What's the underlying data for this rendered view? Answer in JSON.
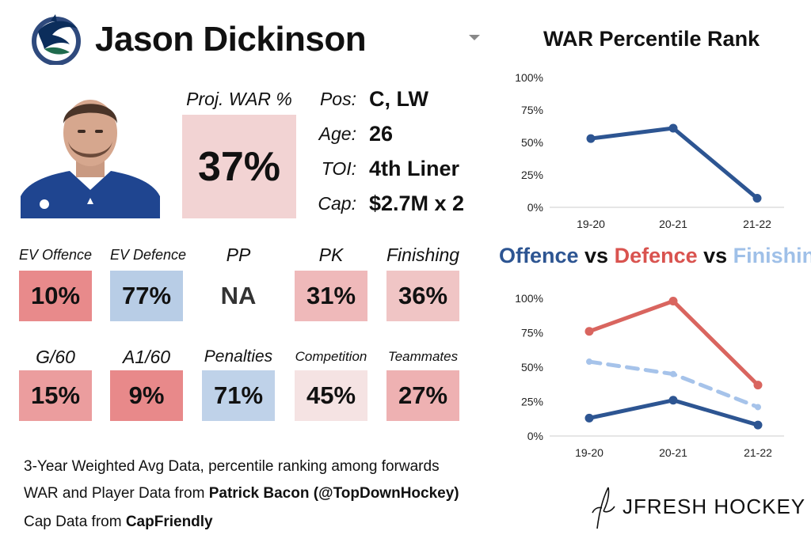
{
  "header": {
    "player_name": "Jason Dickinson",
    "team_logo_icon": "orca-logo-icon",
    "dropdown_icon": "chevron-down-icon"
  },
  "player_photo": {
    "icon": "player-headshot"
  },
  "projection": {
    "label": "Proj. WAR %",
    "value": "37%",
    "color": "#f2d3d3"
  },
  "info": [
    {
      "label": "Pos:",
      "value": "C, LW"
    },
    {
      "label": "Age:",
      "value": "26"
    },
    {
      "label": "TOI:",
      "value": "4th Liner"
    },
    {
      "label": "Cap:",
      "value": "$2.7M x 2"
    }
  ],
  "tiles_row1": [
    {
      "label": "EV Offence",
      "value": "10%",
      "color": "#e88a8b"
    },
    {
      "label": "EV Defence",
      "value": "77%",
      "color": "#b8cde6"
    },
    {
      "label": "PP",
      "value": "NA",
      "color": "#ffffff",
      "text_color": "#333333"
    },
    {
      "label": "PK",
      "value": "31%",
      "color": "#efb9ba"
    },
    {
      "label": "Finishing",
      "value": "36%",
      "color": "#f0c5c5"
    }
  ],
  "tiles_row2": [
    {
      "label": "G/60",
      "value": "15%",
      "color": "#eb9d9e"
    },
    {
      "label": "A1/60",
      "value": "9%",
      "color": "#e8898a"
    },
    {
      "label": "Penalties",
      "value": "71%",
      "color": "#bfd2e9"
    },
    {
      "label": "Competition",
      "value": "45%",
      "color": "#f5e3e3"
    },
    {
      "label": "Teammates",
      "value": "27%",
      "color": "#eeb1b2"
    }
  ],
  "footer": {
    "line1": "3-Year Weighted Avg Data, percentile ranking among forwards",
    "line2_prefix": "WAR and Player Data from ",
    "line2_bold": "Patrick Bacon (@TopDownHockey)",
    "line3_prefix": "Cap Data from ",
    "line3_bold": "CapFriendly"
  },
  "branding": {
    "text": "JFRESH HOCKEY",
    "icon": "jfresh-signature-icon"
  },
  "chart_data": [
    {
      "type": "line",
      "title": "WAR Percentile Rank",
      "categories": [
        "19-20",
        "20-21",
        "21-22"
      ],
      "series": [
        {
          "values": [
            53,
            61,
            7
          ],
          "color": "#2d5592",
          "dashed": false
        }
      ],
      "yticks": [
        "0%",
        "25%",
        "50%",
        "75%",
        "100%"
      ],
      "ylim": [
        0,
        100
      ],
      "grid": false,
      "legend": "none"
    },
    {
      "type": "line",
      "title_parts": [
        {
          "text": "Offence",
          "color": "#2d5592"
        },
        {
          "text": " vs ",
          "color": "#111111"
        },
        {
          "text": "Defence",
          "color": "#d9534f"
        },
        {
          "text": " vs ",
          "color": "#111111"
        },
        {
          "text": "Finishing",
          "color": "#9fc0e8"
        }
      ],
      "categories": [
        "19-20",
        "20-21",
        "21-22"
      ],
      "series": [
        {
          "values": [
            13,
            26,
            8
          ],
          "color": "#2d5592",
          "dashed": false
        },
        {
          "values": [
            76,
            98,
            37
          ],
          "color": "#d9655f",
          "dashed": false
        },
        {
          "values": [
            54,
            45,
            21
          ],
          "color": "#a6c3ea",
          "dashed": true
        }
      ],
      "yticks": [
        "0%",
        "25%",
        "50%",
        "75%",
        "100%"
      ],
      "ylim": [
        0,
        100
      ],
      "grid": false,
      "legend": "none"
    }
  ]
}
